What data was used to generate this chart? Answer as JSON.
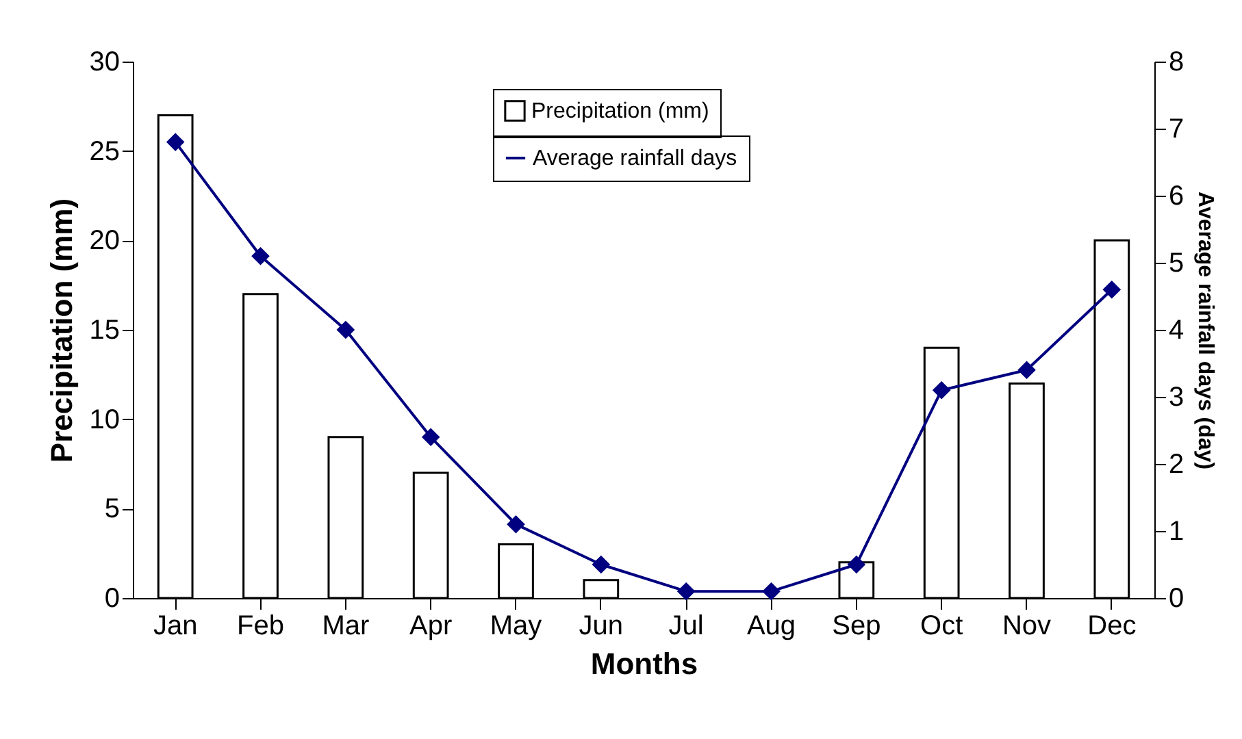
{
  "chart_data": {
    "type": "bar",
    "xlabel": "Months",
    "ylabel": "Precipitation (mm)",
    "y2label": "Average rainfall days (day)",
    "categories": [
      "Jan",
      "Feb",
      "Mar",
      "Apr",
      "May",
      "Jun",
      "Jul",
      "Aug",
      "Sep",
      "Oct",
      "Nov",
      "Dec"
    ],
    "series": [
      {
        "name": "Precipitation (mm)",
        "color": "#ffffff",
        "values": [
          27,
          17,
          9,
          7,
          3,
          1,
          0,
          0,
          2,
          14,
          12,
          20
        ]
      },
      {
        "name": "Average rainfall days",
        "type": "line",
        "axis": "y2",
        "color": "#000080",
        "marker": "diamond",
        "values": [
          6.8,
          5.1,
          4.0,
          2.4,
          1.1,
          0.5,
          0.1,
          0.1,
          0.5,
          3.1,
          3.4,
          4.6
        ]
      }
    ],
    "ylim": [
      0,
      30
    ],
    "yticks": [
      0,
      5,
      10,
      15,
      20,
      25,
      30
    ],
    "y2lim": [
      0,
      8
    ],
    "y2ticks": [
      0,
      1,
      2,
      3,
      4,
      5,
      6,
      7,
      8
    ],
    "grid": false,
    "legend": "top"
  }
}
